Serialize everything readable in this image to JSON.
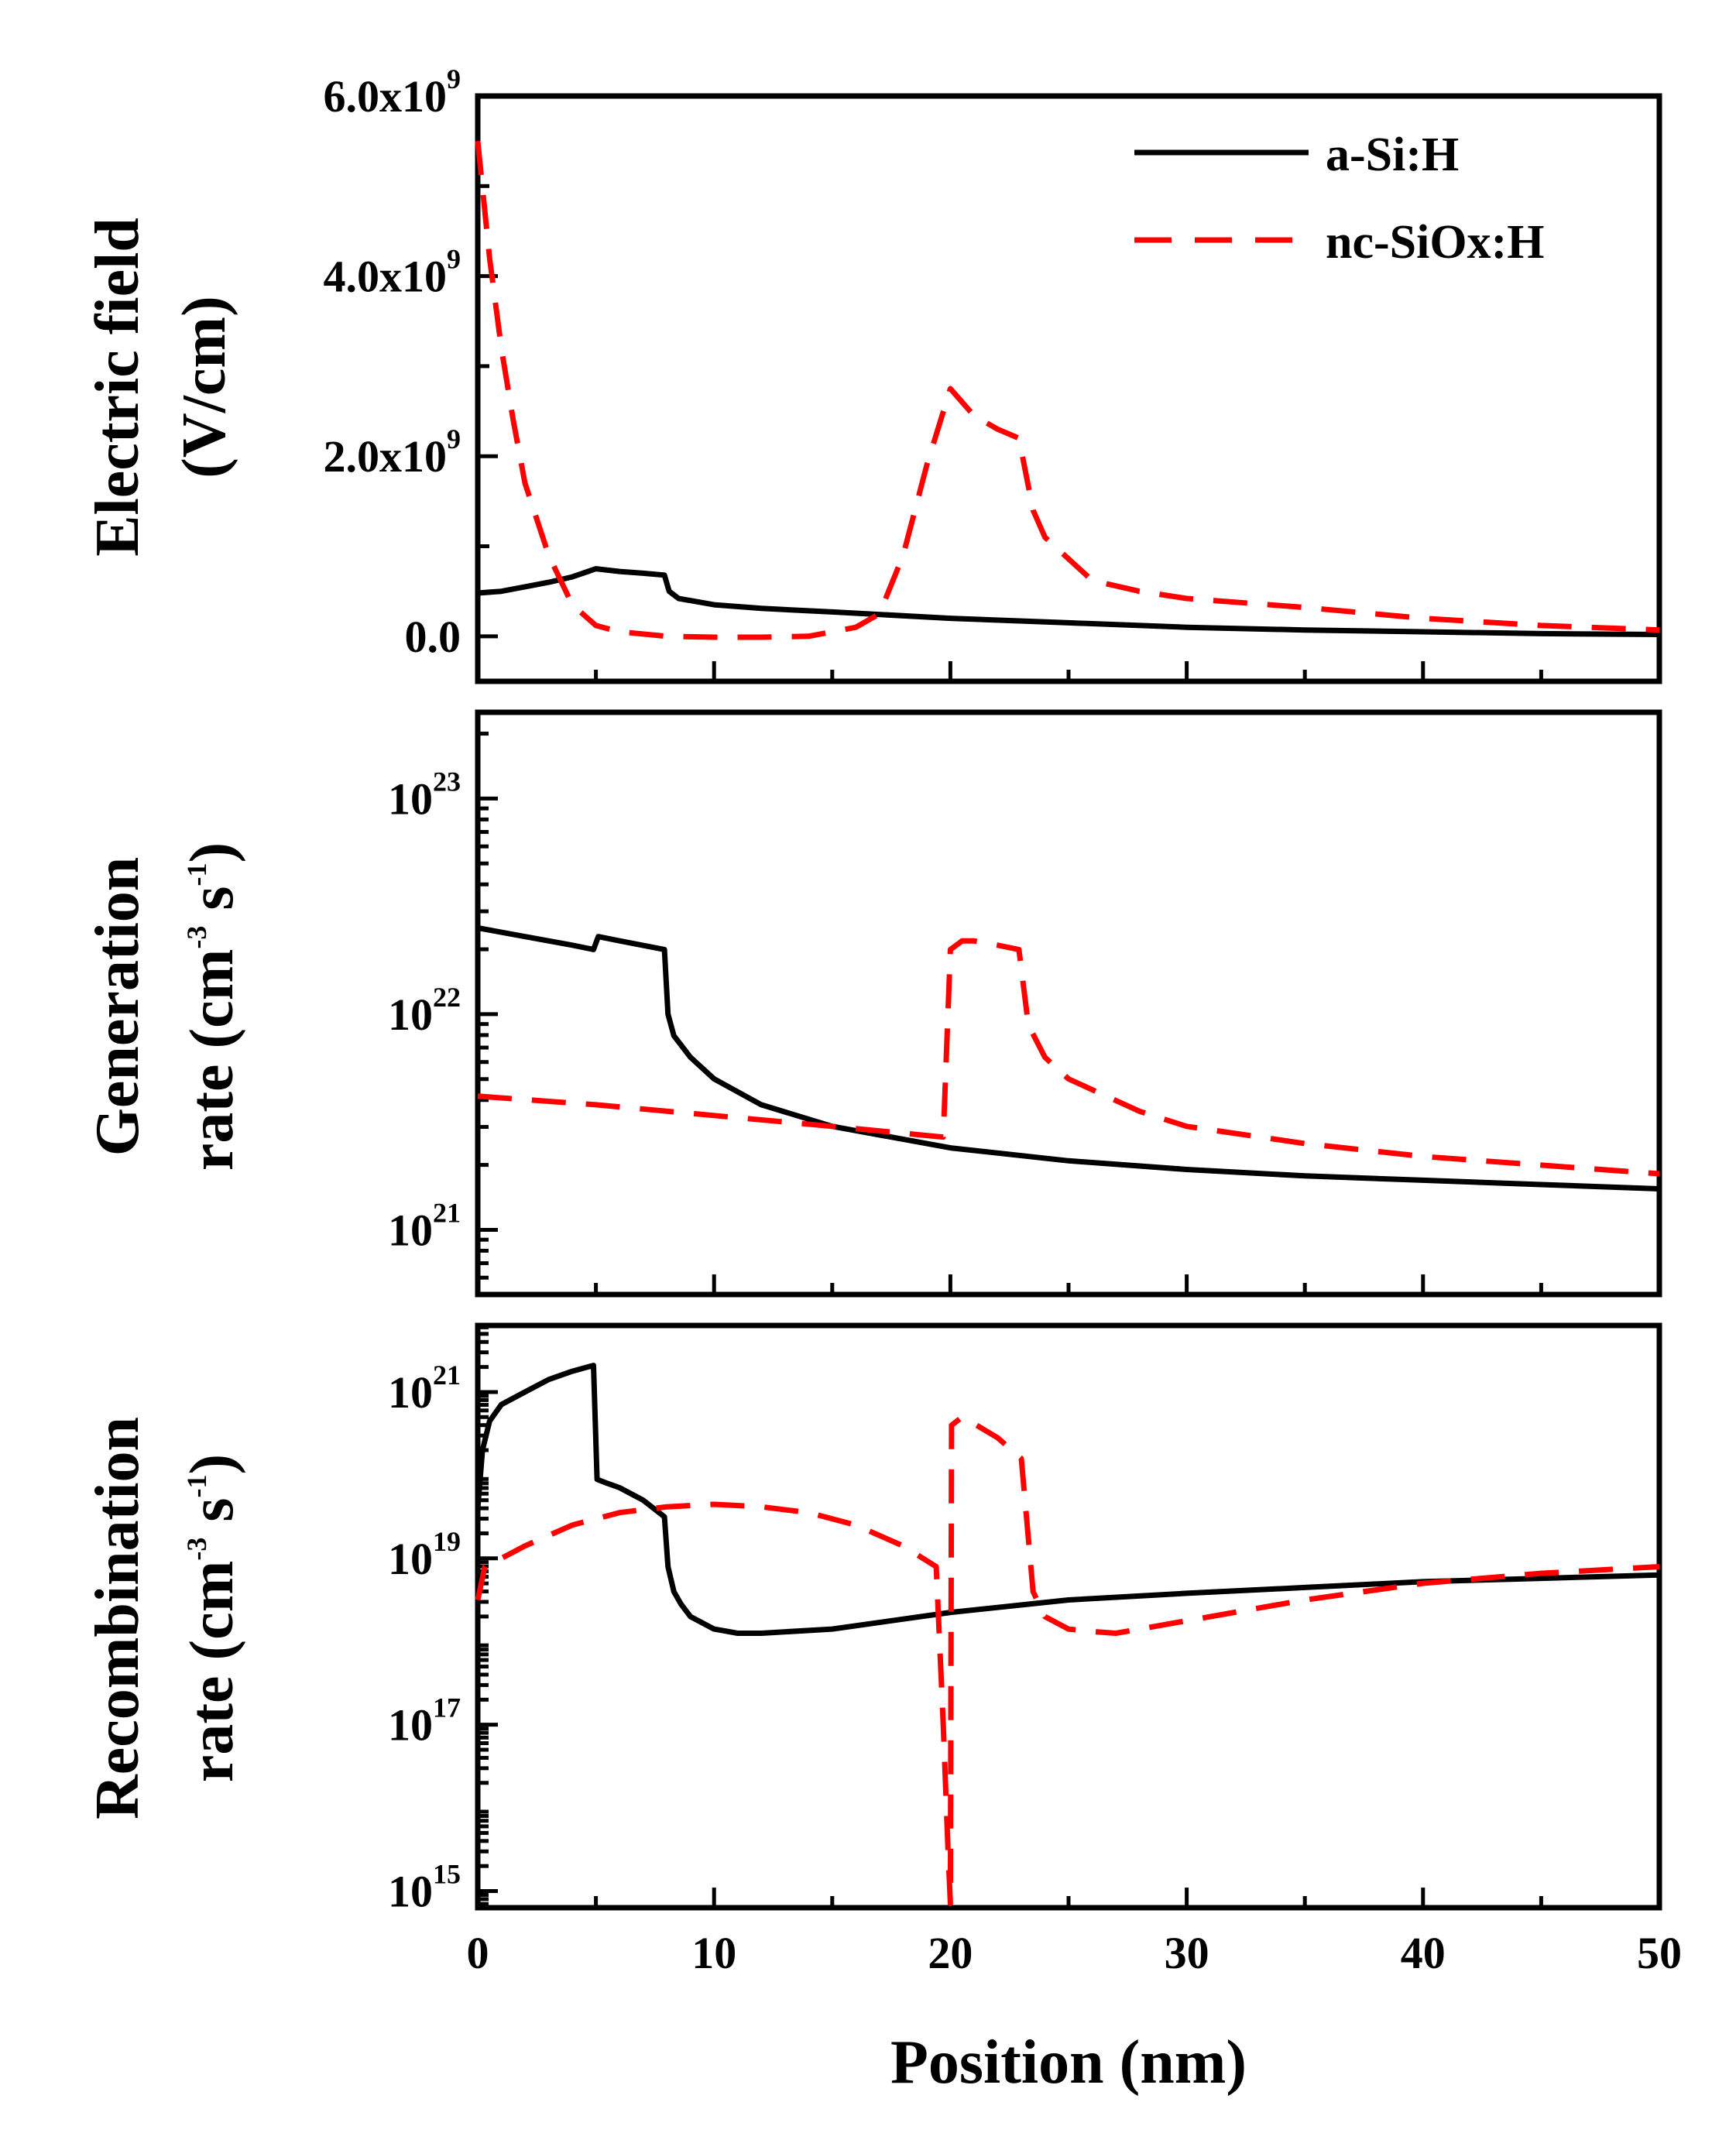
{
  "chart_data": [
    {
      "type": "line",
      "panel": "top",
      "ylabel_lines": [
        "Electric field",
        "(V/cm)"
      ],
      "yscale": "linear",
      "ylim": [
        -0.5,
        6.0
      ],
      "yticks": [
        {
          "value": 0.0,
          "base": "0.0",
          "exp": ""
        },
        {
          "value": 2.0,
          "base": "2.0x10",
          "exp": "9"
        },
        {
          "value": 4.0,
          "base": "4.0x10",
          "exp": "9"
        },
        {
          "value": 6.0,
          "base": "6.0x10",
          "exp": "9"
        }
      ],
      "y_unit_note": "values in units of 1e9 V/cm",
      "xlim": [
        0,
        50
      ],
      "series": [
        {
          "name": "a-Si:H",
          "style": "solid",
          "color": "#000000",
          "x": [
            0,
            1,
            2,
            3,
            4,
            5,
            6,
            7,
            7.9,
            8.1,
            8.5,
            10,
            12,
            15,
            20,
            25,
            30,
            35,
            40,
            45,
            50
          ],
          "y": [
            0.48,
            0.5,
            0.55,
            0.6,
            0.66,
            0.75,
            0.72,
            0.7,
            0.68,
            0.5,
            0.42,
            0.35,
            0.31,
            0.27,
            0.2,
            0.15,
            0.1,
            0.07,
            0.05,
            0.03,
            0.02
          ]
        },
        {
          "name": "nc-SiOx:H",
          "style": "dashed",
          "color": "#ff0000",
          "x": [
            0,
            0.5,
            1,
            1.5,
            2,
            3,
            4,
            5,
            6,
            8,
            10,
            12,
            14,
            16,
            17,
            18,
            19,
            20,
            21,
            22,
            22.9,
            23.5,
            24,
            26,
            28,
            30,
            35,
            40,
            45,
            50
          ],
          "y": [
            5.5,
            4.2,
            3.2,
            2.4,
            1.7,
            0.9,
            0.35,
            0.12,
            0.05,
            0.0,
            -0.01,
            -0.01,
            0.0,
            0.1,
            0.25,
            0.9,
            1.9,
            2.75,
            2.45,
            2.3,
            2.2,
            1.4,
            1.1,
            0.62,
            0.5,
            0.42,
            0.32,
            0.2,
            0.12,
            0.07
          ]
        }
      ],
      "legend": {
        "placement": "top-right",
        "entries": [
          "a-Si:H",
          "nc-SiOx:H"
        ]
      }
    },
    {
      "type": "line",
      "panel": "middle",
      "ylabel_lines": [
        "Generation",
        "rate (cm-3s-1)"
      ],
      "yscale": "log",
      "ylim": [
        20.7,
        23.4
      ],
      "yticks": [
        {
          "value": 21,
          "base": "10",
          "exp": "21"
        },
        {
          "value": 22,
          "base": "10",
          "exp": "22"
        },
        {
          "value": 23,
          "base": "10",
          "exp": "23"
        }
      ],
      "y_unit_note": "values are log10(rate)",
      "xlim": [
        0,
        50
      ],
      "series": [
        {
          "name": "a-Si:H",
          "style": "solid",
          "color": "#000000",
          "x": [
            0,
            2,
            4,
            4.9,
            5.1,
            6,
            7.9,
            8.05,
            8.3,
            9,
            10,
            12,
            15,
            20,
            25,
            30,
            35,
            40,
            45,
            50
          ],
          "y": [
            22.4,
            22.36,
            22.32,
            22.3,
            22.36,
            22.34,
            22.3,
            22.0,
            21.9,
            21.8,
            21.7,
            21.58,
            21.48,
            21.38,
            21.32,
            21.28,
            21.25,
            21.23,
            21.21,
            21.19
          ]
        },
        {
          "name": "nc-SiOx:H",
          "style": "dashed",
          "color": "#ff0000",
          "x": [
            0,
            5,
            10,
            15,
            19.7,
            20.0,
            20.5,
            21,
            22,
            22.9,
            23.3,
            24,
            25,
            28,
            30,
            35,
            40,
            45,
            50
          ],
          "y": [
            21.62,
            21.58,
            21.53,
            21.48,
            21.43,
            22.3,
            22.34,
            22.34,
            22.32,
            22.3,
            21.95,
            21.8,
            21.7,
            21.55,
            21.48,
            21.4,
            21.34,
            21.3,
            21.26
          ]
        }
      ]
    },
    {
      "type": "line",
      "panel": "bottom",
      "ylabel_lines": [
        "Recombination",
        "rate (cm-3s-1)"
      ],
      "yscale": "log",
      "ylim": [
        14.8,
        21.8
      ],
      "yticks": [
        {
          "value": 15,
          "base": "10",
          "exp": "15"
        },
        {
          "value": 17,
          "base": "10",
          "exp": "17"
        },
        {
          "value": 19,
          "base": "10",
          "exp": "19"
        },
        {
          "value": 21,
          "base": "10",
          "exp": "21"
        }
      ],
      "y_unit_note": "values are log10(rate)",
      "xlim": [
        0,
        50
      ],
      "series": [
        {
          "name": "a-Si:H",
          "style": "solid",
          "color": "#000000",
          "x": [
            0,
            0.2,
            0.5,
            1,
            2,
            3,
            4,
            4.9,
            5.05,
            5.5,
            6,
            7,
            7.9,
            8.05,
            8.3,
            8.6,
            9,
            10,
            11,
            12,
            15,
            20,
            25,
            30,
            35,
            40,
            45,
            50
          ],
          "y": [
            19.6,
            20.3,
            20.65,
            20.85,
            21.0,
            21.15,
            21.25,
            21.32,
            19.95,
            19.9,
            19.85,
            19.7,
            19.5,
            18.9,
            18.6,
            18.45,
            18.3,
            18.15,
            18.1,
            18.1,
            18.15,
            18.35,
            18.5,
            18.58,
            18.65,
            18.72,
            18.76,
            18.8
          ]
        },
        {
          "name": "nc-SiOx:H",
          "style": "dashed",
          "color": "#ff0000",
          "x": [
            0,
            0.3,
            1,
            2,
            4,
            6,
            8,
            10,
            12,
            14,
            16,
            18,
            19.4,
            19.7,
            19.9,
            20.0,
            20.05,
            20.5,
            21,
            22,
            23.0,
            23.5,
            24,
            25,
            26,
            27,
            30,
            35,
            40,
            45,
            50
          ],
          "y": [
            18.5,
            18.9,
            19.0,
            19.15,
            19.4,
            19.55,
            19.62,
            19.65,
            19.62,
            19.55,
            19.4,
            19.15,
            18.9,
            17.0,
            15.5,
            14.85,
            20.6,
            20.7,
            20.62,
            20.45,
            20.2,
            18.6,
            18.3,
            18.15,
            18.12,
            18.1,
            18.25,
            18.5,
            18.7,
            18.82,
            18.9
          ]
        }
      ]
    }
  ],
  "x_axis": {
    "title": "Position (nm)",
    "ticks": [
      "0",
      "10",
      "20",
      "30",
      "40",
      "50"
    ]
  }
}
